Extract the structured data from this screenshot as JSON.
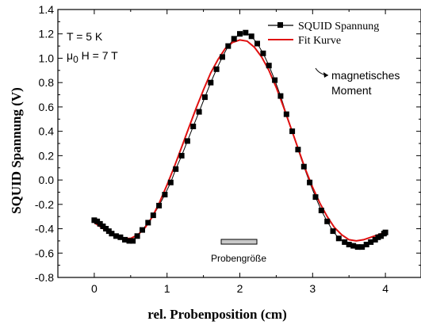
{
  "chart_data": {
    "type": "line",
    "xlabel": "rel. Probenposition (cm)",
    "ylabel": "SQUID Spannung (V)",
    "xlim": [
      -0.5,
      4.5
    ],
    "ylim": [
      -0.8,
      1.4
    ],
    "xticks": [
      "0",
      "1",
      "2",
      "3",
      "4"
    ],
    "yticks": [
      "-0.8",
      "-0.6",
      "-0.4",
      "-0.2",
      "0.0",
      "0.2",
      "0.4",
      "0.6",
      "0.8",
      "1.0",
      "1.2",
      "1.4"
    ],
    "grid": false,
    "legend_position": "top-right",
    "series": [
      {
        "name": "SQUID Spannung",
        "style": "line-with-square-markers",
        "color": "#000000",
        "x": [
          0.0,
          0.04,
          0.08,
          0.12,
          0.16,
          0.2,
          0.24,
          0.3,
          0.36,
          0.42,
          0.48,
          0.53,
          0.59,
          0.66,
          0.74,
          0.81,
          0.89,
          0.97,
          1.05,
          1.12,
          1.2,
          1.28,
          1.36,
          1.44,
          1.52,
          1.6,
          1.68,
          1.76,
          1.84,
          1.92,
          2.0,
          2.08,
          2.16,
          2.24,
          2.32,
          2.4,
          2.48,
          2.56,
          2.64,
          2.72,
          2.8,
          2.88,
          2.96,
          3.04,
          3.12,
          3.2,
          3.28,
          3.36,
          3.44,
          3.5,
          3.56,
          3.62,
          3.68,
          3.74,
          3.8,
          3.86,
          3.9,
          3.94,
          3.98,
          4.0
        ],
        "values": [
          -0.33,
          -0.34,
          -0.36,
          -0.38,
          -0.4,
          -0.42,
          -0.44,
          -0.46,
          -0.47,
          -0.49,
          -0.5,
          -0.5,
          -0.46,
          -0.41,
          -0.35,
          -0.29,
          -0.21,
          -0.12,
          -0.02,
          0.09,
          0.2,
          0.32,
          0.44,
          0.56,
          0.68,
          0.8,
          0.91,
          1.01,
          1.1,
          1.16,
          1.2,
          1.21,
          1.18,
          1.12,
          1.04,
          0.94,
          0.82,
          0.69,
          0.54,
          0.4,
          0.25,
          0.11,
          -0.02,
          -0.14,
          -0.25,
          -0.34,
          -0.42,
          -0.48,
          -0.51,
          -0.53,
          -0.54,
          -0.55,
          -0.55,
          -0.53,
          -0.51,
          -0.49,
          -0.47,
          -0.46,
          -0.44,
          -0.43
        ]
      },
      {
        "name": "Fit Kurve",
        "style": "line",
        "color": "#e01010",
        "x": [
          0.0,
          0.1,
          0.2,
          0.3,
          0.4,
          0.5,
          0.6,
          0.7,
          0.8,
          0.9,
          1.0,
          1.1,
          1.2,
          1.3,
          1.4,
          1.5,
          1.6,
          1.7,
          1.8,
          1.9,
          2.0,
          2.1,
          2.2,
          2.3,
          2.4,
          2.5,
          2.6,
          2.7,
          2.8,
          2.9,
          3.0,
          3.1,
          3.2,
          3.3,
          3.4,
          3.5,
          3.6,
          3.7,
          3.8,
          3.9,
          4.0
        ],
        "values": [
          -0.35,
          -0.39,
          -0.43,
          -0.46,
          -0.48,
          -0.48,
          -0.45,
          -0.39,
          -0.3,
          -0.18,
          -0.04,
          0.11,
          0.27,
          0.43,
          0.59,
          0.74,
          0.88,
          0.99,
          1.08,
          1.13,
          1.15,
          1.14,
          1.09,
          1.01,
          0.9,
          0.76,
          0.6,
          0.43,
          0.26,
          0.09,
          -0.06,
          -0.19,
          -0.3,
          -0.39,
          -0.45,
          -0.49,
          -0.5,
          -0.49,
          -0.47,
          -0.45,
          -0.43
        ]
      }
    ],
    "annotations": {
      "temperature": "T = 5 K",
      "field_mu": "μ",
      "field_sub": "0",
      "field_rest": " H = 7 T",
      "moment_line1": "magnetisches",
      "moment_line2": "Moment",
      "sample_size": "Probengröße"
    }
  }
}
